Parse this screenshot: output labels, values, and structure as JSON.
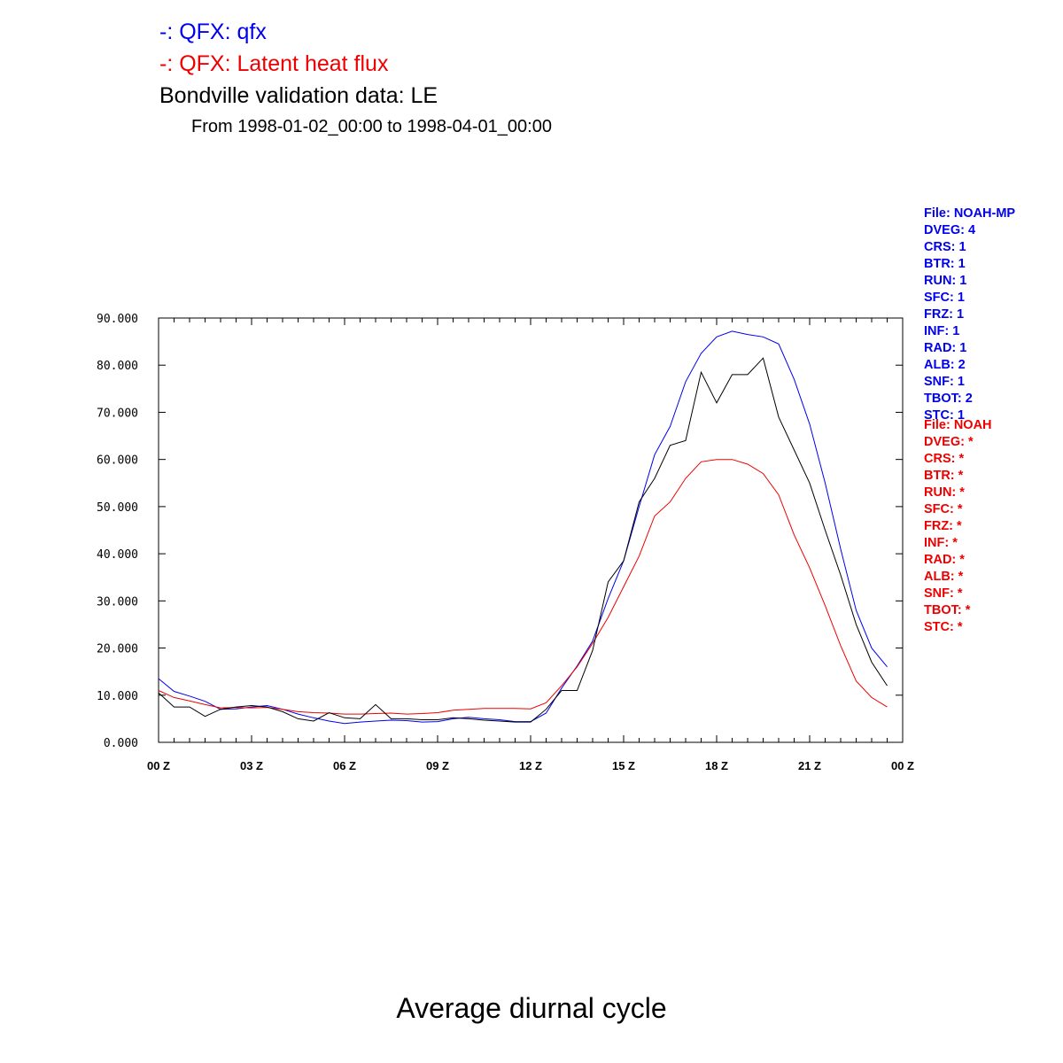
{
  "colors": {
    "blue": "#0000ee",
    "red": "#ee0000",
    "black": "#000000"
  },
  "titles": {
    "line1": "-: QFX: qfx",
    "line2": "-: QFX: Latent heat flux",
    "line3": "Bondville validation data: LE",
    "line4": "From 1998-01-02_00:00 to 1998-04-01_00:00",
    "bottom": "Average diurnal cycle"
  },
  "meta_noahmp": [
    "File: NOAH-MP",
    "DVEG: 4",
    "CRS: 1",
    "BTR: 1",
    "RUN: 1",
    "SFC: 1",
    "FRZ: 1",
    "INF: 1",
    "RAD: 1",
    "ALB: 2",
    "SNF: 1",
    "TBOT: 2",
    "STC: 1"
  ],
  "meta_noah": [
    "File: NOAH",
    "DVEG: *",
    "CRS: *",
    "BTR: *",
    "RUN: *",
    "SFC: *",
    "FRZ: *",
    "INF: *",
    "RAD: *",
    "ALB: *",
    "SNF: *",
    "TBOT: *",
    "STC: *"
  ],
  "chart_data": {
    "type": "line",
    "title": "",
    "xlabel": "",
    "ylabel": "",
    "xlim": [
      0,
      24
    ],
    "ylim": [
      0,
      90
    ],
    "xticks": [
      "00 Z",
      "03 Z",
      "06 Z",
      "09 Z",
      "12 Z",
      "15 Z",
      "18 Z",
      "21 Z",
      "00 Z"
    ],
    "yticks": [
      "0.000",
      "10.000",
      "20.000",
      "30.000",
      "40.000",
      "50.000",
      "60.000",
      "70.000",
      "80.000",
      "90.000"
    ],
    "x": [
      0,
      0.5,
      1,
      1.5,
      2,
      2.5,
      3,
      3.5,
      4,
      4.5,
      5,
      5.5,
      6,
      6.5,
      7,
      7.5,
      8,
      8.5,
      9,
      9.5,
      10,
      10.5,
      11,
      11.5,
      12,
      12.5,
      13,
      13.5,
      14,
      14.5,
      15,
      15.5,
      16,
      16.5,
      17,
      17.5,
      18,
      18.5,
      19,
      19.5,
      20,
      20.5,
      21,
      21.5,
      22,
      22.5,
      23,
      23.5
    ],
    "series": [
      {
        "name": "qfx",
        "color": "blue",
        "values": [
          13.5,
          10.8,
          9.8,
          8.7,
          7.0,
          7.1,
          7.5,
          7.8,
          7.0,
          6.0,
          5.2,
          4.5,
          4.0,
          4.3,
          4.5,
          4.7,
          4.6,
          4.3,
          4.4,
          5.0,
          5.3,
          5.0,
          4.8,
          4.4,
          4.4,
          6.2,
          11.5,
          16.2,
          21.5,
          30.5,
          38.5,
          50.0,
          61.0,
          67.0,
          76.5,
          82.5,
          86.0,
          87.2,
          86.5,
          86.0,
          84.5,
          77.0,
          67.5,
          55.0,
          41.0,
          28.0,
          20.0,
          16.0
        ]
      },
      {
        "name": "Latent heat flux",
        "color": "red",
        "values": [
          11.0,
          9.5,
          8.8,
          8.0,
          7.3,
          7.4,
          7.3,
          7.4,
          7.0,
          6.5,
          6.3,
          6.2,
          6.0,
          6.0,
          6.1,
          6.2,
          6.0,
          6.1,
          6.3,
          6.8,
          7.0,
          7.2,
          7.2,
          7.2,
          7.1,
          8.4,
          12.0,
          16.0,
          21.0,
          26.5,
          33.0,
          39.5,
          48.0,
          51.0,
          56.0,
          59.5,
          60.0,
          60.0,
          59.0,
          57.0,
          52.5,
          44.0,
          37.0,
          29.0,
          20.5,
          13.0,
          9.5,
          7.5
        ]
      },
      {
        "name": "LE",
        "color": "black",
        "values": [
          10.5,
          7.5,
          7.5,
          5.5,
          7.0,
          7.5,
          7.8,
          7.5,
          6.5,
          5.0,
          4.5,
          6.3,
          5.2,
          5.0,
          8.0,
          5.0,
          5.0,
          4.8,
          4.8,
          5.2,
          5.0,
          4.7,
          4.5,
          4.3,
          4.3,
          7.0,
          11.0,
          11.0,
          19.5,
          34.0,
          38.5,
          51.0,
          56.0,
          63.0,
          64.0,
          78.5,
          72.0,
          78.0,
          78.0,
          81.5,
          69.0,
          62.0,
          55.0,
          45.0,
          35.5,
          25.0,
          17.0,
          12.0
        ]
      }
    ]
  }
}
